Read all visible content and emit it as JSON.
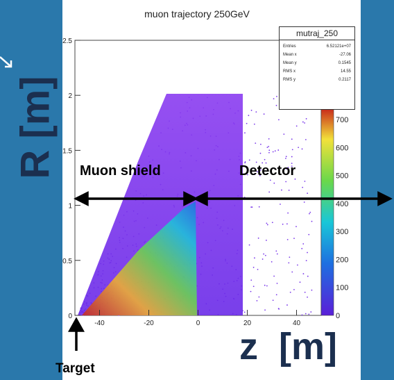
{
  "chart_data": {
    "type": "heatmap",
    "title": "muon trajectory 250GeV",
    "xlabel": "z  [m]",
    "ylabel": "R [m]",
    "xlim": [
      -50,
      50
    ],
    "ylim": [
      0,
      2.5
    ],
    "x_ticks": [
      "-40",
      "-20",
      "0",
      "20",
      "40"
    ],
    "y_ticks": [
      "0",
      "0.5",
      "1",
      "1.5",
      "2",
      "2.5"
    ],
    "palette_ticks": [
      "700",
      "600",
      "500",
      "400",
      "300",
      "200",
      "100",
      "0"
    ],
    "colors": {
      "low": "#5a1fd8",
      "mid": "#19c7d8",
      "high": "#c8281b",
      "slide_bg": "#2a78ab"
    }
  },
  "stats_box": {
    "name": "mutraj_250",
    "rows": [
      {
        "label": "Entries",
        "value": "6.52121e+07"
      },
      {
        "label": "Mean x",
        "value": "-27.06"
      },
      {
        "label": "Mean y",
        "value": "0.1545"
      },
      {
        "label": "RMS x",
        "value": "14.55"
      },
      {
        "label": "RMS y",
        "value": "0.2117"
      }
    ]
  },
  "annotations": {
    "muon_shield": "Muon shield",
    "detector": "Detector",
    "target": "Target"
  }
}
